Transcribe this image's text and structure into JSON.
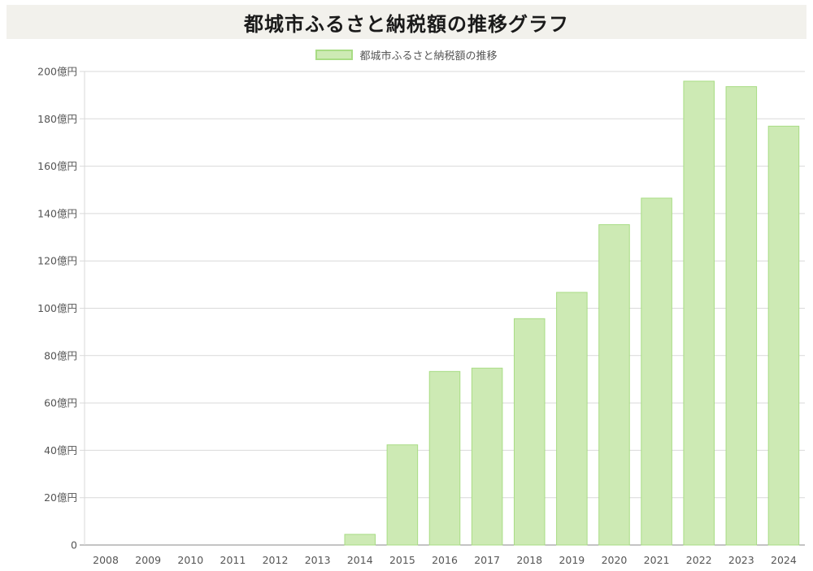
{
  "title": "都城市ふるさと納税額の推移グラフ",
  "legend_label": "都城市ふるさと納税額の推移",
  "colors": {
    "bar_fill": "#cdeab4",
    "bar_border": "#a8dc84",
    "grid": "#d9d9d9",
    "title_bg": "#f2f1ec"
  },
  "chart_data": {
    "type": "bar",
    "categories": [
      "2008",
      "2009",
      "2010",
      "2011",
      "2012",
      "2013",
      "2014",
      "2015",
      "2016",
      "2017",
      "2018",
      "2019",
      "2020",
      "2021",
      "2022",
      "2023",
      "2024"
    ],
    "series": [
      {
        "name": "都城市ふるさと納税額の推移",
        "values": [
          0,
          0,
          0,
          0,
          0,
          0,
          4.5,
          42.3,
          73.3,
          74.7,
          95.6,
          106.7,
          135.3,
          146.5,
          195.9,
          193.6,
          176.9
        ]
      }
    ],
    "yticks": [
      "0",
      "20億円",
      "40億円",
      "60億円",
      "80億円",
      "100億円",
      "120億円",
      "140億円",
      "160億円",
      "180億円",
      "200億円"
    ],
    "ylim": [
      0,
      200
    ],
    "grid": true,
    "legend_position": "top-center"
  }
}
